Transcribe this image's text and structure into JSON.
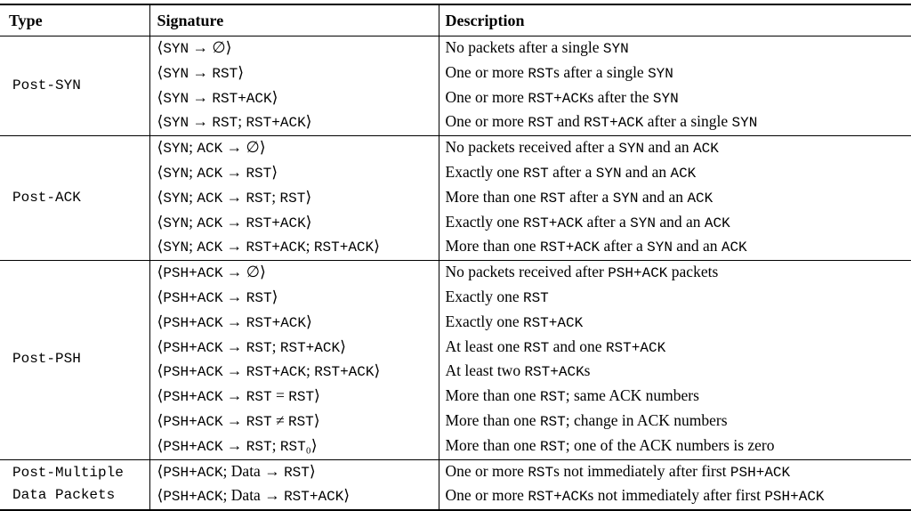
{
  "colors": {
    "text": "#000000",
    "background": "#ffffff",
    "rule": "#000000"
  },
  "table": {
    "columns": [
      "Type",
      "Signature",
      "Description"
    ],
    "groups": [
      {
        "type_lines": [
          "Post-SYN"
        ],
        "rows": [
          {
            "signature": "⟨`SYN` → ∅⟩",
            "description": "No packets after a single `SYN`"
          },
          {
            "signature": "⟨`SYN` → `RST`⟩",
            "description": "One or more `RST`s after a single `SYN`"
          },
          {
            "signature": "⟨`SYN` → `RST+ACK`⟩",
            "description": "One or more `RST+ACK`s after the `SYN`"
          },
          {
            "signature": "⟨`SYN` → `RST`; `RST+ACK`⟩",
            "description": "One or more `RST` and `RST+ACK` after a single `SYN`"
          }
        ]
      },
      {
        "type_lines": [
          "Post-ACK"
        ],
        "rows": [
          {
            "signature": "⟨`SYN`; `ACK` → ∅⟩",
            "description": "No packets received after a `SYN` and an `ACK`"
          },
          {
            "signature": "⟨`SYN`; `ACK` → `RST`⟩",
            "description": "Exactly one `RST` after a `SYN` and an `ACK`"
          },
          {
            "signature": "⟨`SYN`; `ACK` → `RST`; `RST`⟩",
            "description": "More than one `RST` after a `SYN` and an `ACK`"
          },
          {
            "signature": "⟨`SYN`; `ACK` → `RST+ACK`⟩",
            "description": "Exactly one `RST+ACK` after a `SYN` and an `ACK`"
          },
          {
            "signature": "⟨`SYN`; `ACK` → `RST+ACK`; `RST+ACK`⟩",
            "description": "More than one `RST+ACK` after a `SYN` and an `ACK`"
          }
        ]
      },
      {
        "type_lines": [
          "Post-PSH"
        ],
        "rows": [
          {
            "signature": "⟨`PSH+ACK` → ∅⟩",
            "description": "No packets received after `PSH+ACK` packets"
          },
          {
            "signature": "⟨`PSH+ACK` → `RST`⟩",
            "description": "Exactly one `RST`"
          },
          {
            "signature": "⟨`PSH+ACK` → `RST+ACK`⟩",
            "description": "Exactly one `RST+ACK`"
          },
          {
            "signature": "⟨`PSH+ACK` → `RST`; `RST+ACK`⟩",
            "description": "At least one `RST` and one `RST+ACK`"
          },
          {
            "signature": "⟨`PSH+ACK` → `RST+ACK`; `RST+ACK`⟩",
            "description": "At least two `RST+ACK`s"
          },
          {
            "signature": "⟨`PSH+ACK` → `RST` = `RST`⟩",
            "description": "More than one `RST`; same ACK numbers"
          },
          {
            "signature": "⟨`PSH+ACK` → `RST` ≠ `RST`⟩",
            "description": "More than one `RST`; change in ACK numbers"
          },
          {
            "signature": "⟨`PSH+ACK` → `RST`; `RST`₀⟩",
            "description": "More than one `RST`; one of the ACK numbers is zero"
          }
        ]
      },
      {
        "type_lines": [
          "Post-Multiple",
          "Data Packets"
        ],
        "rows": [
          {
            "signature": "⟨`PSH+ACK`; Data → `RST`⟩",
            "description": "One or more `RST`s not immediately after first `PSH+ACK`"
          },
          {
            "signature": "⟨`PSH+ACK`; Data → `RST+ACK`⟩",
            "description": "One or more `RST+ACK`s not immediately after first `PSH+ACK`"
          }
        ]
      }
    ]
  }
}
